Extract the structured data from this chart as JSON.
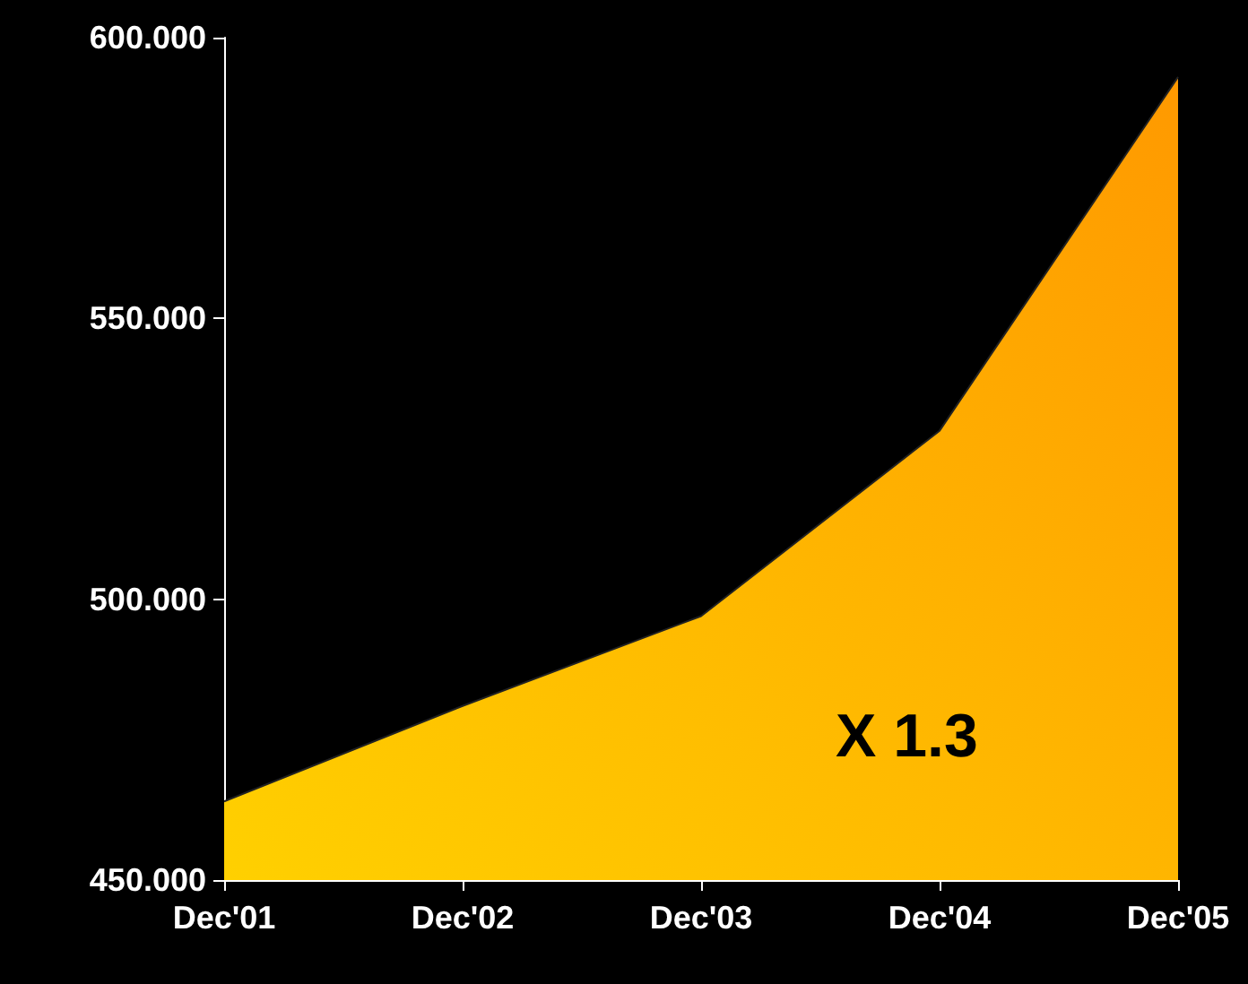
{
  "chart_data": {
    "type": "area",
    "categories": [
      "Dec'01",
      "Dec'02",
      "Dec'03",
      "Dec'04",
      "Dec'05"
    ],
    "series": [
      {
        "color": "#ffbb00",
        "values": [
          464,
          481,
          497,
          530,
          593
        ]
      }
    ],
    "ylim": [
      450,
      600
    ],
    "yticks": [
      {
        "value": 450,
        "label": "450.000"
      },
      {
        "value": 500,
        "label": "500.000"
      },
      {
        "value": 550,
        "label": "550.000"
      },
      {
        "value": 600,
        "label": "600.000"
      }
    ],
    "annotations": [
      "X 1.3"
    ],
    "grid": false
  }
}
